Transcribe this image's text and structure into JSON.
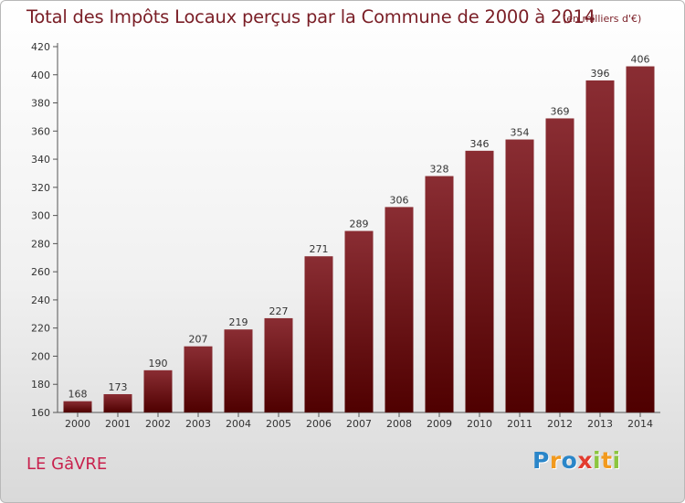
{
  "chart_title": "Total des Impôts Locaux perçus par la Commune de 2000 à 2014",
  "chart_subtitle": "(en milliers d'€)",
  "commune_name": "LE GâVRE",
  "logo": {
    "text": "Proxiti",
    "letters": [
      {
        "ch": "P",
        "color": "#2a86c9"
      },
      {
        "ch": "r",
        "color": "#f29a1e"
      },
      {
        "ch": "o",
        "color": "#2a86c9"
      },
      {
        "ch": "x",
        "color": "#e33b2e"
      },
      {
        "ch": "i",
        "color": "#8cc63f"
      },
      {
        "ch": "t",
        "color": "#f29a1e"
      },
      {
        "ch": "i",
        "color": "#8cc63f"
      }
    ]
  },
  "chart_data": {
    "type": "bar",
    "title": "Total des Impôts Locaux perçus par la Commune de 2000 à 2014",
    "subtitle": "(en milliers d'€)",
    "categories": [
      "2000",
      "2001",
      "2002",
      "2003",
      "2004",
      "2005",
      "2006",
      "2007",
      "2008",
      "2009",
      "2010",
      "2011",
      "2012",
      "2013",
      "2014"
    ],
    "values": [
      168,
      173,
      190,
      207,
      219,
      227,
      271,
      289,
      306,
      328,
      346,
      354,
      369,
      396,
      406
    ],
    "ylim": [
      160,
      420
    ],
    "yticks": [
      160,
      180,
      200,
      220,
      240,
      260,
      280,
      300,
      320,
      340,
      360,
      380,
      400,
      420
    ],
    "grid": false,
    "bar_color_top": "#8a2d33",
    "bar_color_bottom": "#4f0000"
  }
}
